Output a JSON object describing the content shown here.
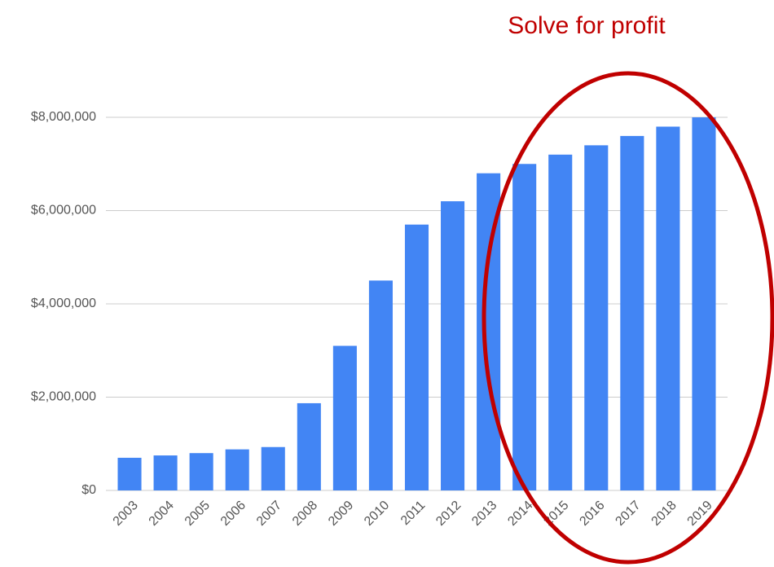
{
  "chart_data": {
    "type": "bar",
    "annotation": "Solve for profit",
    "annotation_color": "#c00000",
    "categories": [
      "2003",
      "2004",
      "2005",
      "2006",
      "2007",
      "2008",
      "2009",
      "2010",
      "2011",
      "2012",
      "2013",
      "2014",
      "2015",
      "2016",
      "2017",
      "2018",
      "2019"
    ],
    "values": [
      700000,
      750000,
      800000,
      880000,
      930000,
      1870000,
      3100000,
      4500000,
      5700000,
      6200000,
      6800000,
      7000000,
      7200000,
      7400000,
      7600000,
      7800000,
      8000000
    ],
    "color": "#4285f4",
    "ylim": [
      0,
      8000000
    ],
    "yticks": [
      {
        "value": 0,
        "label": "$0"
      },
      {
        "value": 2000000,
        "label": "$2,000,000"
      },
      {
        "value": 4000000,
        "label": "$4,000,000"
      },
      {
        "value": 6000000,
        "label": "$6,000,000"
      },
      {
        "value": 8000000,
        "label": "$8,000,000"
      }
    ],
    "grid": true
  }
}
